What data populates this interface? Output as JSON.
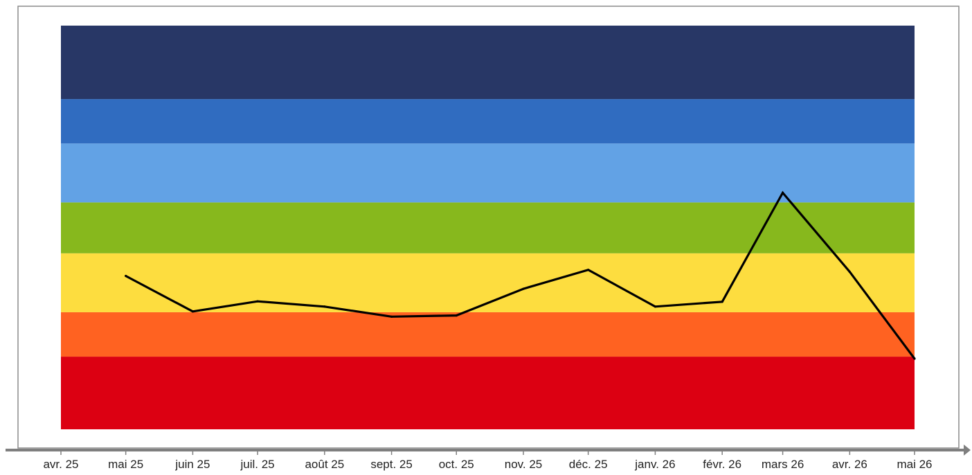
{
  "chart_data": {
    "type": "line",
    "x": [
      "2025-05-01",
      "2025-06-01",
      "2025-07-01",
      "2025-08-01",
      "2025-09-01",
      "2025-10-01",
      "2025-11-01",
      "2025-12-01",
      "2026-01-01",
      "2026-02-01",
      "2026-03-01",
      "2026-04-01",
      "2026-05-01"
    ],
    "values": [
      0.38,
      0.292,
      0.317,
      0.304,
      0.279,
      0.282,
      0.348,
      0.395,
      0.304,
      0.316,
      0.586,
      0.39,
      0.175
    ],
    "xlim": [
      "2025-04-01",
      "2026-05-01"
    ],
    "ylim": [
      0,
      1
    ],
    "x_tick_labels": [
      "avr. 25",
      "mai 25",
      "juin 25",
      "juil. 25",
      "août 25",
      "sept. 25",
      "oct. 25",
      "nov. 25",
      "déc. 25",
      "janv. 26",
      "févr. 26",
      "mars 26",
      "avr. 26",
      "mai 26"
    ],
    "x_tick_dates": [
      "2025-04-01",
      "2025-05-01",
      "2025-06-01",
      "2025-07-01",
      "2025-08-01",
      "2025-09-01",
      "2025-10-01",
      "2025-11-01",
      "2025-12-01",
      "2026-01-01",
      "2026-02-01",
      "2026-03-01",
      "2026-04-01",
      "2026-05-01"
    ],
    "bands": [
      {
        "from": 0.0,
        "to": 0.18,
        "color": "#dc0012"
      },
      {
        "from": 0.18,
        "to": 0.29,
        "color": "#ff6221"
      },
      {
        "from": 0.29,
        "to": 0.436,
        "color": "#fddd3f"
      },
      {
        "from": 0.436,
        "to": 0.562,
        "color": "#87b81d"
      },
      {
        "from": 0.562,
        "to": 0.708,
        "color": "#62a2e5"
      },
      {
        "from": 0.708,
        "to": 0.818,
        "color": "#306cc0"
      },
      {
        "from": 0.818,
        "to": 1.0,
        "color": "#283766"
      }
    ],
    "line_color": "#000000",
    "grid": false
  }
}
